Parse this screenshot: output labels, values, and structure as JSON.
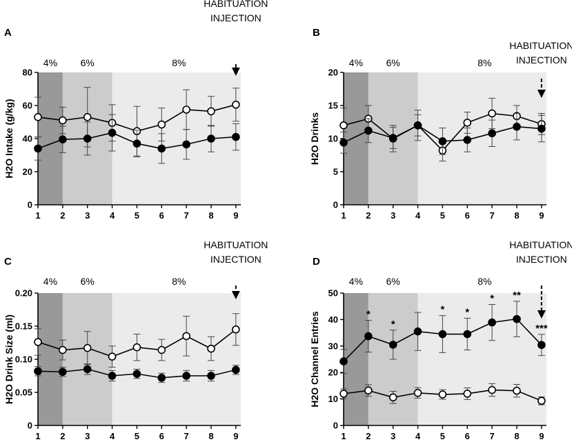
{
  "chart_data": [
    {
      "type": "line",
      "panel_label": "A",
      "ylabel": "H2O Intake (g/kg)",
      "xlabel": "",
      "ylim": [
        0,
        80
      ],
      "yticks": [
        0,
        20,
        40,
        60,
        80
      ],
      "x": [
        1,
        2,
        3,
        4,
        5,
        6,
        7,
        8,
        9
      ],
      "grid": false,
      "phases": [
        {
          "label": "4%",
          "start": 1,
          "end": 2,
          "color": "#999999"
        },
        {
          "label": "6%",
          "start": 2,
          "end": 4,
          "color": "#cccccc"
        },
        {
          "label": "8%",
          "start": 4,
          "end": 9,
          "color": "#ebebeb"
        }
      ],
      "annotation": {
        "lines": [
          "HABITUATION",
          "INJECTION"
        ],
        "x": 9
      },
      "series": [
        {
          "name": "open",
          "marker": "open",
          "values": [
            53,
            51,
            53,
            49.5,
            44.5,
            48.5,
            57.5,
            56.5,
            60.5
          ],
          "errors": [
            12,
            8,
            18,
            11,
            15,
            10,
            12,
            9,
            10
          ]
        },
        {
          "name": "filled",
          "marker": "filled",
          "values": [
            34,
            39.5,
            40,
            43.5,
            37,
            34,
            36.5,
            40,
            41
          ],
          "errors": [
            7,
            8,
            10,
            11,
            8,
            9,
            9,
            8,
            8
          ]
        }
      ],
      "significance": []
    },
    {
      "type": "line",
      "panel_label": "B",
      "ylabel": "H2O Drinks",
      "xlabel": "",
      "ylim": [
        0,
        20
      ],
      "yticks": [
        0,
        5,
        10,
        15,
        20
      ],
      "x": [
        1,
        2,
        3,
        4,
        5,
        6,
        7,
        8,
        9
      ],
      "grid": false,
      "phases": [
        {
          "label": "4%",
          "start": 1,
          "end": 2,
          "color": "#999999"
        },
        {
          "label": "6%",
          "start": 2,
          "end": 4,
          "color": "#cccccc"
        },
        {
          "label": "8%",
          "start": 4,
          "end": 9,
          "color": "#ebebeb"
        }
      ],
      "annotation": {
        "lines": [
          "HABITUATION",
          "INJECTION"
        ],
        "x": 9
      },
      "series": [
        {
          "name": "open",
          "marker": "open",
          "values": [
            12,
            13,
            10,
            12,
            8.2,
            12.4,
            13.8,
            13.4,
            12.2
          ],
          "errors": [
            2.6,
            2,
            2,
            2.3,
            1.6,
            1.6,
            2.3,
            1.6,
            1.6
          ]
        },
        {
          "name": "filled",
          "marker": "filled",
          "values": [
            9.4,
            11.2,
            10.1,
            12,
            9.6,
            9.8,
            10.8,
            11.8,
            11.5
          ],
          "errors": [
            1.6,
            1.8,
            1.6,
            1.6,
            2,
            1.8,
            2,
            2,
            2
          ]
        }
      ],
      "significance": []
    },
    {
      "type": "line",
      "panel_label": "C",
      "ylabel": "H2O Drink Size (ml)",
      "xlabel": "",
      "ylim": [
        0,
        0.2
      ],
      "yticks": [
        0,
        0.05,
        0.1,
        0.15,
        0.2
      ],
      "ytick_labels": [
        "0",
        "0.05",
        "0.10",
        "0.15",
        "0.20"
      ],
      "x": [
        1,
        2,
        3,
        4,
        5,
        6,
        7,
        8,
        9
      ],
      "grid": false,
      "phases": [
        {
          "label": "4%",
          "start": 1,
          "end": 2,
          "color": "#999999"
        },
        {
          "label": "6%",
          "start": 2,
          "end": 4,
          "color": "#cccccc"
        },
        {
          "label": "8%",
          "start": 4,
          "end": 9,
          "color": "#ebebeb"
        }
      ],
      "annotation": {
        "lines": [
          "HABITUATION",
          "INJECTION"
        ],
        "x": 9
      },
      "series": [
        {
          "name": "open",
          "marker": "open",
          "values": [
            0.126,
            0.114,
            0.117,
            0.104,
            0.118,
            0.114,
            0.135,
            0.116,
            0.145
          ],
          "errors": [
            0.02,
            0.015,
            0.025,
            0.016,
            0.02,
            0.016,
            0.03,
            0.018,
            0.024
          ]
        },
        {
          "name": "filled",
          "marker": "filled",
          "values": [
            0.082,
            0.081,
            0.085,
            0.075,
            0.078,
            0.072,
            0.075,
            0.075,
            0.084
          ],
          "errors": [
            0.007,
            0.007,
            0.008,
            0.008,
            0.007,
            0.007,
            0.008,
            0.008,
            0.007
          ]
        }
      ],
      "significance": []
    },
    {
      "type": "line",
      "panel_label": "D",
      "ylabel": "H2O Channel Entries",
      "xlabel": "",
      "ylim": [
        0,
        50
      ],
      "yticks": [
        0,
        10,
        20,
        30,
        40,
        50
      ],
      "x": [
        1,
        2,
        3,
        4,
        5,
        6,
        7,
        8,
        9
      ],
      "grid": false,
      "phases": [
        {
          "label": "4%",
          "start": 1,
          "end": 2,
          "color": "#999999"
        },
        {
          "label": "6%",
          "start": 2,
          "end": 4,
          "color": "#cccccc"
        },
        {
          "label": "8%",
          "start": 4,
          "end": 9,
          "color": "#ebebeb"
        }
      ],
      "annotation": {
        "lines": [
          "HABITUATION",
          "INJECTION"
        ],
        "x": 9
      },
      "series": [
        {
          "name": "open",
          "marker": "open",
          "values": [
            12,
            13.2,
            10.6,
            12.3,
            11.7,
            12,
            13.4,
            13.1,
            9.3
          ],
          "errors": [
            1.8,
            2.2,
            2.3,
            2,
            1.8,
            2.2,
            2.4,
            2.4,
            1.5
          ]
        },
        {
          "name": "filled",
          "marker": "filled",
          "values": [
            24.2,
            33.7,
            30.5,
            35.5,
            34.5,
            34.5,
            38.9,
            40.2,
            30.4
          ],
          "errors": [
            4.5,
            6,
            5.5,
            7.2,
            7,
            6,
            6.8,
            6.7,
            4
          ]
        }
      ],
      "significance": [
        {
          "x": 2,
          "label": "*"
        },
        {
          "x": 3,
          "label": "*"
        },
        {
          "x": 5,
          "label": "*"
        },
        {
          "x": 6,
          "label": "*"
        },
        {
          "x": 7,
          "label": "*"
        },
        {
          "x": 8,
          "label": "**"
        },
        {
          "x": 9,
          "label": "***"
        }
      ]
    }
  ]
}
